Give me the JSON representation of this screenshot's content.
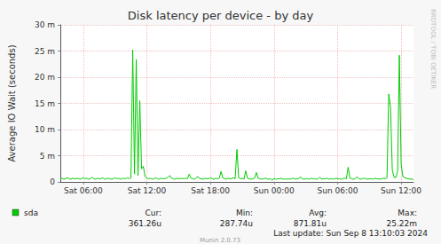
{
  "chart_data": {
    "type": "line",
    "title": "Disk latency per device - by day",
    "y_label": "Average IO Wait (seconds)",
    "x": [
      230,
      240,
      250,
      260,
      270,
      280,
      290,
      300,
      310,
      320,
      330,
      340,
      350,
      360,
      370,
      380,
      390,
      400,
      410,
      420,
      430,
      440,
      450,
      460,
      470,
      480,
      490,
      500,
      510,
      520,
      530,
      540,
      550,
      560,
      570,
      580,
      590,
      600,
      610,
      620,
      630,
      640,
      650,
      660,
      670,
      680,
      690,
      700,
      710,
      720,
      730,
      740,
      750,
      760,
      770,
      780,
      790,
      800,
      810,
      820,
      830,
      840,
      850,
      860,
      870,
      880,
      890,
      900,
      910,
      920,
      930,
      940,
      950,
      960,
      970,
      980,
      990,
      1000,
      1010,
      1020,
      1030,
      1040,
      1050,
      1060,
      1070,
      1080,
      1090,
      1100,
      1110,
      1120,
      1130,
      1140,
      1150,
      1160,
      1170,
      1180,
      1190,
      1200,
      1210,
      1220,
      1230,
      1240,
      1250,
      1260,
      1270,
      1280,
      1290,
      1300,
      1310,
      1320,
      1330,
      1340,
      1350,
      1360,
      1370,
      1380,
      1390,
      1400,
      1410,
      1420,
      1430,
      1440,
      1450,
      1460,
      1470,
      1480,
      1490,
      1500,
      1510,
      1520,
      1530,
      1540,
      1550,
      1560,
      1570,
      1580,
      1590,
      1600,
      1610,
      1620,
      1630,
      1640,
      1650,
      1660,
      1670,
      1680,
      1690,
      1700,
      1710,
      1720,
      1730,
      1740,
      1750,
      1760,
      1770,
      1780,
      1790,
      1800,
      1810,
      1820,
      1830,
      1840,
      1850,
      1860,
      1870,
      1880,
      1890,
      1900,
      1910,
      1920,
      1930,
      1940,
      1950,
      1960,
      1970,
      1980,
      1990,
      2000,
      2010,
      2020,
      2030,
      2040,
      2050,
      2060,
      2070,
      2080,
      2090,
      2100,
      2110,
      2120,
      2130,
      2140,
      2150,
      2160,
      2170,
      2180,
      2190,
      2200,
      2210,
      2220,
      2230
    ],
    "series": [
      {
        "name": "sda",
        "color": "#00cc00",
        "values": [
          0.0006,
          0.0007,
          0.0005,
          0.0006,
          0.0008,
          0.0006,
          0.0005,
          0.0007,
          0.0006,
          0.0006,
          0.0007,
          0.0005,
          0.0006,
          0.0008,
          0.0006,
          0.0007,
          0.0005,
          0.0006,
          0.0009,
          0.0006,
          0.0005,
          0.0007,
          0.0006,
          0.0006,
          0.0008,
          0.0005,
          0.0006,
          0.0007,
          0.0006,
          0.0005,
          0.0006,
          0.0008,
          0.0006,
          0.0007,
          0.0005,
          0.0006,
          0.0007,
          0.0006,
          0.0008,
          0.0006,
          0.0008,
          0.02522,
          0.0015,
          0.0234,
          0.0012,
          0.0155,
          0.0025,
          0.003,
          0.001,
          0.0007,
          0.0006,
          0.0007,
          0.0005,
          0.0006,
          0.0008,
          0.0006,
          0.0005,
          0.0007,
          0.0006,
          0.0006,
          0.0007,
          0.0009,
          0.0012,
          0.0007,
          0.0006,
          0.0005,
          0.0007,
          0.0006,
          0.0006,
          0.0007,
          0.0006,
          0.0007,
          0.0006,
          0.0015,
          0.0007,
          0.0006,
          0.0005,
          0.0008,
          0.001,
          0.0006,
          0.0006,
          0.0005,
          0.0007,
          0.0006,
          0.0006,
          0.0008,
          0.0006,
          0.0005,
          0.0007,
          0.0006,
          0.0007,
          0.002,
          0.0008,
          0.0006,
          0.0005,
          0.0007,
          0.0006,
          0.0006,
          0.0008,
          0.0006,
          0.0062,
          0.0008,
          0.0006,
          0.0007,
          0.0005,
          0.0021,
          0.0007,
          0.0006,
          0.0005,
          0.0006,
          0.0007,
          0.0018,
          0.0007,
          0.0006,
          0.0005,
          0.0006,
          0.0007,
          0.0006,
          0.0005,
          0.0006,
          0.00029,
          0.0007,
          0.0005,
          0.0006,
          0.0006,
          0.0007,
          0.0005,
          0.0006,
          0.0005,
          0.0006,
          0.0005,
          0.0006,
          0.0007,
          0.0005,
          0.0006,
          0.0006,
          0.001,
          0.0006,
          0.0005,
          0.0006,
          0.0006,
          0.0005,
          0.0007,
          0.0006,
          0.0006,
          0.0005,
          0.0006,
          0.0009,
          0.0005,
          0.0006,
          0.0006,
          0.0007,
          0.0005,
          0.0006,
          0.0006,
          0.0005,
          0.0007,
          0.0006,
          0.0006,
          0.0005,
          0.0006,
          0.0007,
          0.0006,
          0.0028,
          0.0007,
          0.0006,
          0.0005,
          0.0006,
          0.001,
          0.0006,
          0.0005,
          0.0006,
          0.0007,
          0.0006,
          0.0005,
          0.0006,
          0.0006,
          0.0005,
          0.0007,
          0.0006,
          0.0006,
          0.0005,
          0.0006,
          0.0007,
          0.0006,
          0.0008,
          0.0168,
          0.0143,
          0.0022,
          0.0009,
          0.0008,
          0.002,
          0.0242,
          0.0035,
          0.001,
          0.0008,
          0.0007,
          0.0006,
          0.0005,
          0.0006,
          0.00036126
        ],
        "stats": [
          {
            "value": 0.00036126,
            "label": "361.26u"
          },
          {
            "value": 0.00028774,
            "label": "287.74u"
          },
          {
            "value": 0.00087181,
            "label": "871.81u"
          },
          {
            "value": 0.02522,
            "label": "25.22m"
          }
        ]
      }
    ],
    "stats_headers": [
      "Cur:",
      "Min:",
      "Avg:",
      "Max:"
    ],
    "xlim": [
      230,
      2230
    ],
    "xticks": [
      {
        "value": 360,
        "label": "Sat 06:00"
      },
      {
        "value": 720,
        "label": "Sat 12:00"
      },
      {
        "value": 1080,
        "label": "Sat 18:00"
      },
      {
        "value": 1440,
        "label": "Sun 00:00"
      },
      {
        "value": 1800,
        "label": "Sun 06:00"
      },
      {
        "value": 2160,
        "label": "Sun 12:00"
      }
    ],
    "ylim": [
      0,
      0.03
    ],
    "yticks": [
      0,
      {
        "value": 0.005,
        "label": "5 m"
      },
      {
        "value": 0.01,
        "label": "10 m"
      },
      {
        "value": 0.015,
        "label": "15 m"
      },
      {
        "value": 0.02,
        "label": "20 m"
      },
      {
        "value": 0.025,
        "label": "25 m"
      },
      {
        "value": 0.03,
        "label": "30 m"
      }
    ],
    "grid": true,
    "footer": "Last update: Sun Sep 8 13:10:03 2024",
    "credit": "Munin 2.0.73",
    "side_text": "RRDTOOL / TOBI OETIKER"
  }
}
